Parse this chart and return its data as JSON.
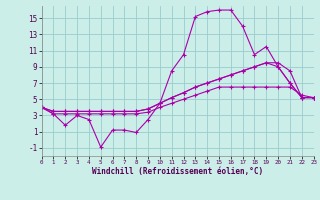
{
  "xlabel": "Windchill (Refroidissement éolien,°C)",
  "xlim": [
    0,
    23
  ],
  "ylim": [
    -2.0,
    16.5
  ],
  "yticks": [
    -1,
    1,
    3,
    5,
    7,
    9,
    11,
    13,
    15
  ],
  "xticks": [
    0,
    1,
    2,
    3,
    4,
    5,
    6,
    7,
    8,
    9,
    10,
    11,
    12,
    13,
    14,
    15,
    16,
    17,
    18,
    19,
    20,
    21,
    22,
    23
  ],
  "background_color": "#cceee8",
  "grid_color": "#99cccc",
  "line_color": "#aa00aa",
  "series": [
    {
      "x": [
        0,
        1,
        2,
        3,
        4,
        5,
        6,
        7,
        8,
        9,
        10,
        11,
        12,
        13,
        14,
        15,
        16,
        17,
        18,
        19,
        20,
        21,
        22,
        23
      ],
      "y": [
        4.0,
        3.2,
        1.8,
        3.0,
        2.5,
        -0.9,
        1.2,
        1.2,
        0.9,
        2.5,
        4.5,
        8.5,
        10.5,
        15.2,
        15.8,
        16.0,
        16.0,
        14.0,
        10.5,
        11.5,
        9.0,
        7.0,
        5.2,
        5.2
      ]
    },
    {
      "x": [
        0,
        1,
        2,
        3,
        4,
        5,
        6,
        7,
        8,
        9,
        10,
        11,
        12,
        13,
        14,
        15,
        16,
        17,
        18,
        19,
        20,
        21,
        22,
        23
      ],
      "y": [
        4.0,
        3.5,
        3.5,
        3.5,
        3.5,
        3.5,
        3.5,
        3.5,
        3.5,
        3.8,
        4.5,
        5.2,
        5.8,
        6.5,
        7.0,
        7.5,
        8.0,
        8.5,
        9.0,
        9.5,
        9.0,
        7.0,
        5.2,
        5.2
      ]
    },
    {
      "x": [
        0,
        1,
        2,
        3,
        4,
        5,
        6,
        7,
        8,
        9,
        10,
        11,
        12,
        13,
        14,
        15,
        16,
        17,
        18,
        19,
        20,
        21,
        22,
        23
      ],
      "y": [
        4.0,
        3.5,
        3.5,
        3.5,
        3.5,
        3.5,
        3.5,
        3.5,
        3.5,
        3.8,
        4.5,
        5.2,
        5.8,
        6.5,
        7.0,
        7.5,
        8.0,
        8.5,
        9.0,
        9.5,
        9.5,
        8.5,
        5.2,
        5.2
      ]
    },
    {
      "x": [
        0,
        1,
        2,
        3,
        4,
        5,
        6,
        7,
        8,
        9,
        10,
        11,
        12,
        13,
        14,
        15,
        16,
        17,
        18,
        19,
        20,
        21,
        22,
        23
      ],
      "y": [
        4.0,
        3.2,
        3.2,
        3.2,
        3.2,
        3.2,
        3.2,
        3.2,
        3.2,
        3.4,
        4.0,
        4.5,
        5.0,
        5.5,
        6.0,
        6.5,
        6.5,
        6.5,
        6.5,
        6.5,
        6.5,
        6.5,
        5.5,
        5.2
      ]
    }
  ]
}
